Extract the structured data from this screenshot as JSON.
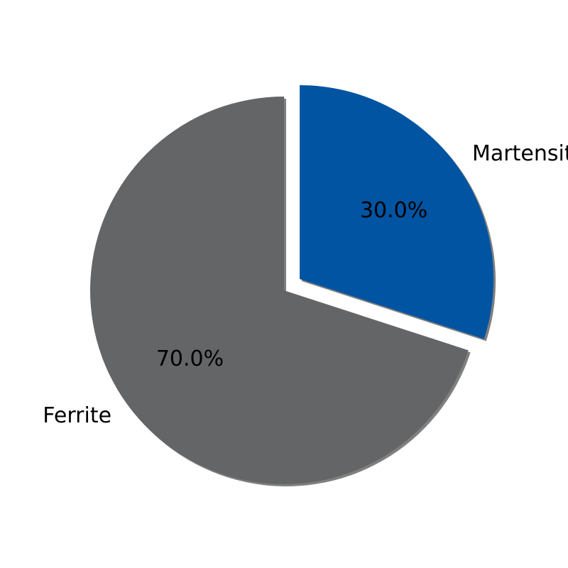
{
  "chart_data": {
    "type": "pie",
    "categories": [
      "Martensite",
      "Ferrite"
    ],
    "values": [
      30.0,
      70.0
    ],
    "percent_labels": [
      "30.0%",
      "70.0%"
    ],
    "colors": [
      "#0054a2",
      "#646567"
    ],
    "exploded": [
      "Martensite"
    ],
    "shadow": true,
    "start_angle_deg": 90,
    "direction": "clockwise",
    "title": "",
    "legend": "none"
  }
}
